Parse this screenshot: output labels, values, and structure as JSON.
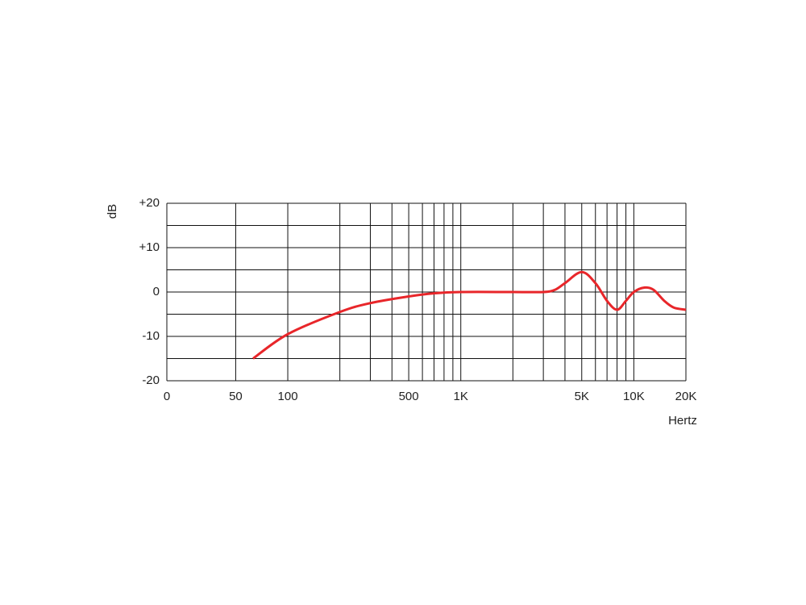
{
  "chart_data": {
    "type": "line",
    "y_label": "dB",
    "x_label": "Hertz",
    "xscale": "log",
    "xlim": [
      20,
      20000
    ],
    "ylim": [
      -20,
      20
    ],
    "xticks": [
      {
        "value": 20,
        "label": "0"
      },
      50,
      100,
      500,
      {
        "value": 1000,
        "label": "1K"
      },
      {
        "value": 5000,
        "label": "5K"
      },
      {
        "value": 10000,
        "label": "10K"
      },
      {
        "value": 20000,
        "label": "20K"
      }
    ],
    "xgrid": [
      200,
      300,
      400,
      600,
      700,
      800,
      900,
      2000,
      3000,
      4000,
      6000,
      7000,
      8000,
      9000
    ],
    "yticks": [
      {
        "value": 20,
        "label": "+20"
      },
      {
        "value": 10,
        "label": "+10"
      },
      0,
      -10,
      -20
    ],
    "ygrid": [
      15,
      5,
      -5,
      -15
    ],
    "grid": true,
    "series": [
      {
        "color": "#e8262a",
        "x": [
          63,
          100,
          200,
          300,
          500,
          700,
          1000,
          2000,
          3000,
          3500,
          4000,
          5000,
          6000,
          7000,
          8000,
          9000,
          10000,
          11500,
          13000,
          15000,
          17000,
          20000
        ],
        "values": [
          -15,
          -9.5,
          -4.5,
          -2.5,
          -1,
          -0.3,
          0,
          0,
          0,
          0.5,
          2,
          4.5,
          2,
          -2,
          -4,
          -2,
          0,
          1,
          0.5,
          -2,
          -3.5,
          -4
        ]
      }
    ]
  }
}
